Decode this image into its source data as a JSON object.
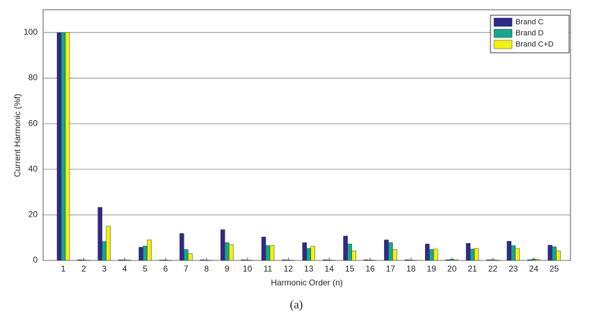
{
  "chart_data": {
    "type": "bar",
    "x_label": "Harmonic Order (n)",
    "y_label": "Current Harmonic (%f)",
    "caption": "(a)",
    "categories": [
      "1",
      "2",
      "3",
      "4",
      "5",
      "6",
      "7",
      "8",
      "9",
      "10",
      "11",
      "12",
      "13",
      "14",
      "15",
      "16",
      "17",
      "18",
      "19",
      "20",
      "21",
      "22",
      "23",
      "24",
      "25"
    ],
    "series": [
      {
        "name": "Brand C",
        "color": "#2e2a8a",
        "values": [
          100,
          0.3,
          23.3,
          0.3,
          5.8,
          0.2,
          11.8,
          0.3,
          13.5,
          0.3,
          10.3,
          0.3,
          7.8,
          0.3,
          10.7,
          0.3,
          9,
          0.3,
          7.2,
          0.3,
          7.5,
          0.3,
          8.4,
          0.3,
          6.7
        ]
      },
      {
        "name": "Brand D",
        "color": "#14a88e",
        "values": [
          100,
          0.2,
          8.3,
          0.3,
          6.3,
          0.2,
          4.8,
          0.2,
          7.8,
          0.2,
          6.5,
          0.2,
          5.3,
          0.2,
          7.2,
          0.2,
          7.8,
          0.2,
          4.8,
          0.5,
          5,
          0.3,
          6.5,
          0.6,
          6
        ]
      },
      {
        "name": "Brand C+D",
        "color": "#f2f20c",
        "values": [
          100,
          0.1,
          15,
          0.2,
          9,
          0.1,
          3,
          0.1,
          7,
          0.1,
          6.5,
          0.1,
          6.2,
          0.1,
          4.2,
          0.1,
          4.8,
          0.1,
          5,
          0.3,
          5.3,
          0.2,
          5.2,
          0.5,
          4.2
        ]
      }
    ],
    "ylim": [
      0,
      110
    ],
    "yticks": [
      0,
      20,
      40,
      60,
      80,
      100
    ],
    "grid": true,
    "legend": "top-right"
  }
}
